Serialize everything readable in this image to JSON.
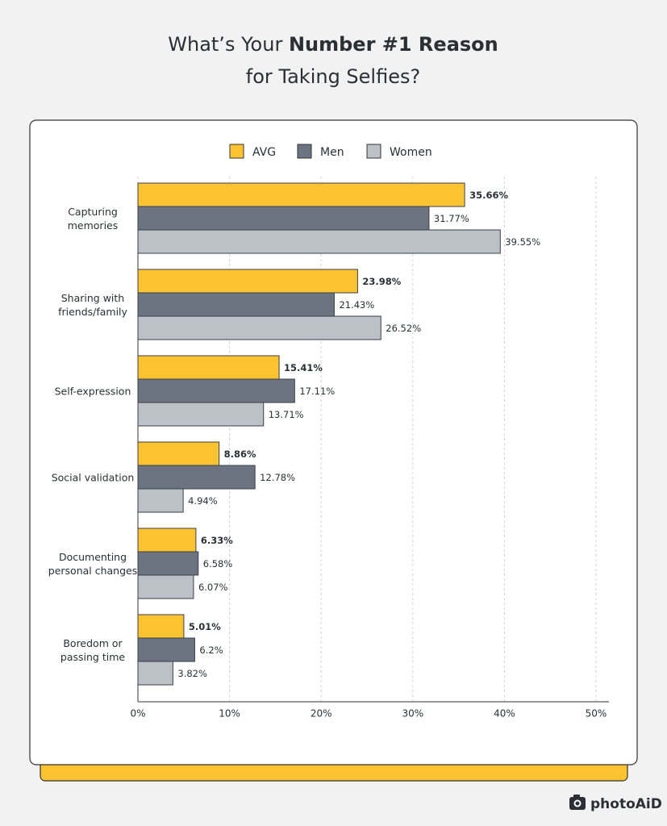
{
  "chart_data": {
    "type": "grouped-hbar",
    "title": {
      "lead": "What’s Your ",
      "emphasis": "Number #1 Reason",
      "rest": "for Taking Selfies?"
    },
    "categories": [
      "Capturing\nmemories",
      "Sharing with\nfriends/family",
      "Self-expression",
      "Social validation",
      "Documenting\npersonal changes",
      "Boredom or\npassing time"
    ],
    "series": [
      {
        "name": "AVG",
        "color": "#fcc330",
        "values": [
          35.66,
          23.98,
          15.41,
          8.86,
          6.33,
          5.01
        ],
        "value_labels": [
          "35.66%",
          "23.98%",
          "15.41%",
          "8.86%",
          "6.33%",
          "5.01%"
        ]
      },
      {
        "name": "Men",
        "color": "#6b7480",
        "values": [
          31.77,
          21.43,
          17.11,
          12.78,
          6.58,
          6.2
        ],
        "value_labels": [
          "31.77%",
          "21.43%",
          "17.11%",
          "12.78%",
          "6.58%",
          "6.2%"
        ]
      },
      {
        "name": "Women",
        "color": "#bcc0c7",
        "values": [
          39.55,
          26.52,
          13.71,
          4.94,
          6.07,
          3.82
        ],
        "value_labels": [
          "39.55%",
          "26.52%",
          "13.71%",
          "4.94%",
          "6.07%",
          "3.82%"
        ]
      }
    ],
    "xlim": [
      0,
      50
    ],
    "xticks": [
      {
        "value": 0,
        "label": "0%"
      },
      {
        "value": 10,
        "label": "10%"
      },
      {
        "value": 20,
        "label": "20%"
      },
      {
        "value": 30,
        "label": "30%"
      },
      {
        "value": 40,
        "label": "40%"
      },
      {
        "value": 50,
        "label": "50%"
      }
    ],
    "grid": true,
    "legend": "top",
    "brand": "photoAiD"
  }
}
